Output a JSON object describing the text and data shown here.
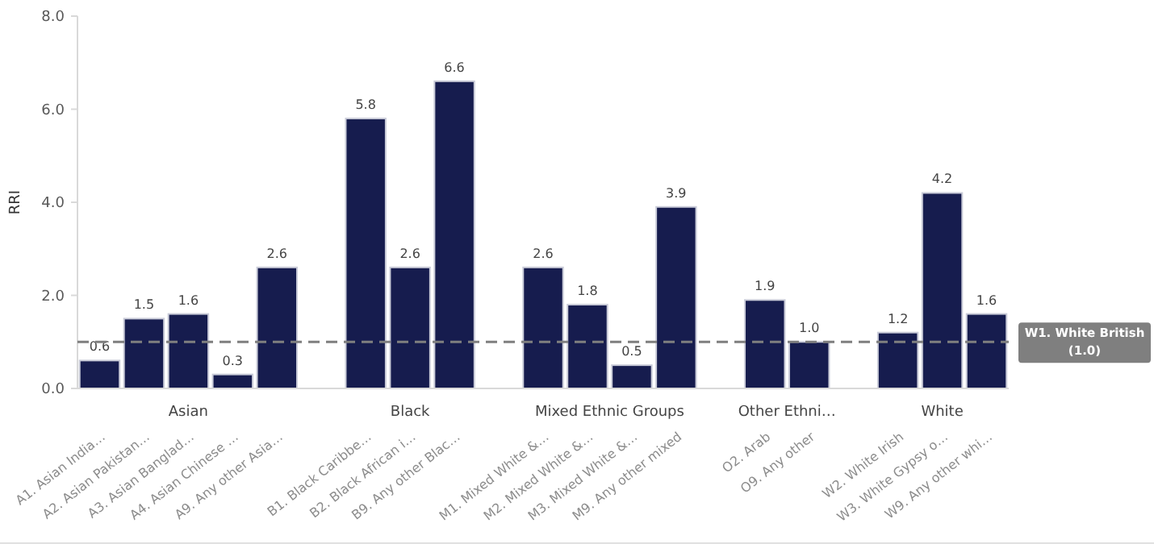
{
  "chart_data": {
    "type": "bar",
    "ylabel": "RRI",
    "categories": [
      "A1. Asian India…",
      "A2. Asian Pakistan…",
      "A3. Asian Banglad…",
      "A4. Asian Chinese …",
      "A9. Any other Asia…",
      null,
      "B1. Black Caribbe…",
      "B2. Black African i…",
      "B9. Any other Blac…",
      null,
      "M1. Mixed White &…",
      "M2. Mixed White &…",
      "M3. Mixed White &…",
      "M9. Any other mixed",
      null,
      "O2. Arab",
      "O9. Any other",
      null,
      "W2. White Irish",
      "W3. White Gypsy o…",
      "W9. Any other whi…"
    ],
    "values": [
      0.6,
      1.5,
      1.6,
      0.3,
      2.6,
      null,
      5.8,
      2.6,
      6.6,
      null,
      2.6,
      1.8,
      0.5,
      3.9,
      null,
      1.9,
      1.0,
      null,
      1.2,
      4.2,
      1.6
    ],
    "color": "#161c4e",
    "annotations": [
      "Asian",
      "Black",
      "Mixed Ethnic Groups",
      "Other Ethni…",
      "White"
    ],
    "ylim": [
      0,
      8
    ],
    "yticks": [
      {
        "value": 0,
        "label": "0.0"
      },
      {
        "value": 2,
        "label": "2.0"
      },
      {
        "value": 4,
        "label": "4.0"
      },
      {
        "value": 6,
        "label": "6.0"
      },
      {
        "value": 8,
        "label": "8.0"
      }
    ],
    "value_labels": [
      "0.6",
      "1.5",
      "1.6",
      "0.3",
      "2.6",
      null,
      "5.8",
      "2.6",
      "6.6",
      null,
      "2.6",
      "1.8",
      "0.5",
      "3.9",
      null,
      "1.9",
      "1.0",
      null,
      "1.2",
      "4.2",
      "1.6"
    ],
    "ref_lines": [
      {
        "axis": "y",
        "value": 1,
        "label": "W1. White British\n(1.0)",
        "color": "#7f7f7f",
        "line_style": "dashed"
      }
    ],
    "grid": false
  }
}
